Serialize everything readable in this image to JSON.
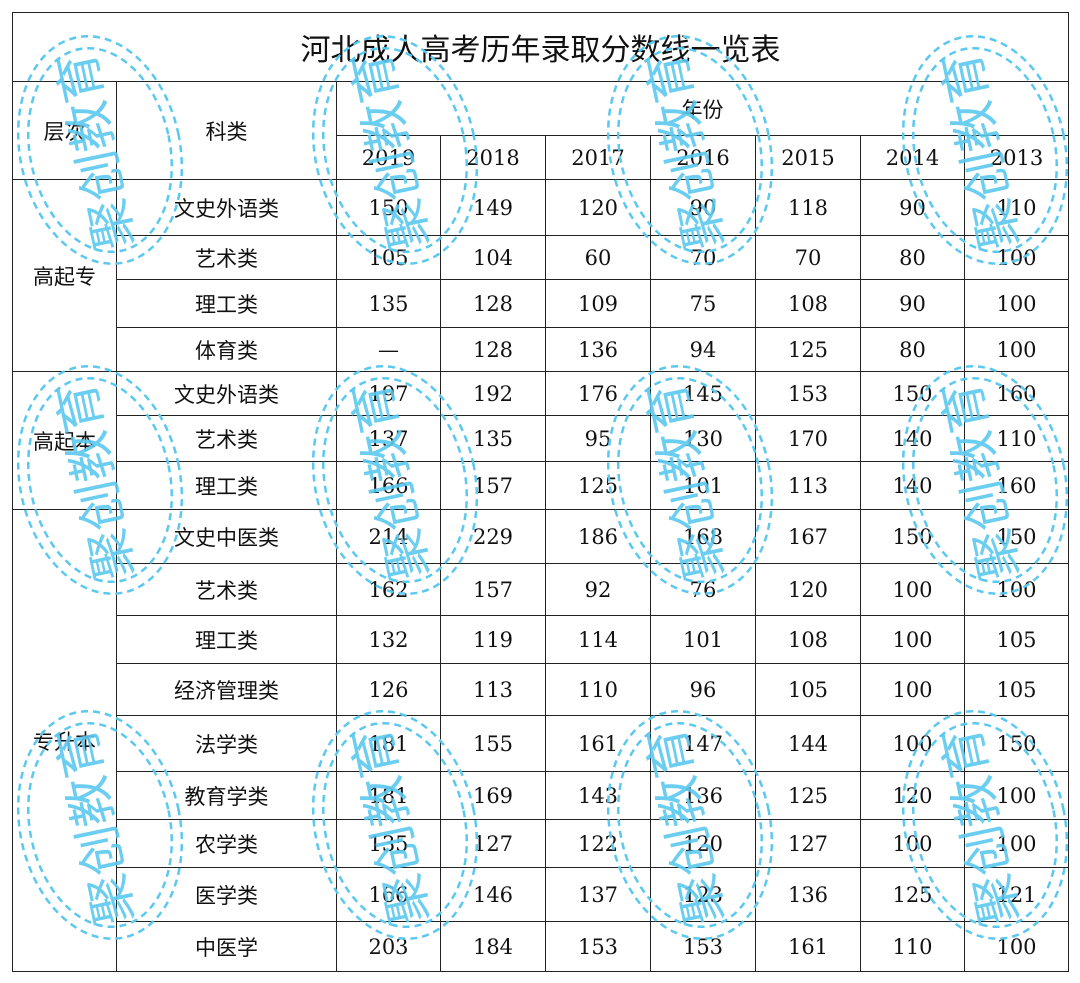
{
  "title": "河北成人高考历年录取分数线一览表",
  "headers": {
    "level": "层次",
    "category": "科类",
    "year_group": "年份",
    "years": [
      "2019",
      "2018",
      "2017",
      "2016",
      "2015",
      "2014",
      "2013"
    ]
  },
  "groups": [
    {
      "level": "高起专",
      "rows": [
        {
          "category": "文史外语类",
          "values": [
            "150",
            "149",
            "120",
            "90",
            "118",
            "90",
            "110"
          ]
        },
        {
          "category": "艺术类",
          "values": [
            "105",
            "104",
            "60",
            "70",
            "70",
            "80",
            "100"
          ]
        },
        {
          "category": "理工类",
          "values": [
            "135",
            "128",
            "109",
            "75",
            "108",
            "90",
            "100"
          ]
        },
        {
          "category": "体育类",
          "values": [
            "—",
            "128",
            "136",
            "94",
            "125",
            "80",
            "100"
          ]
        }
      ]
    },
    {
      "level": "高起本",
      "rows": [
        {
          "category": "文史外语类",
          "values": [
            "197",
            "192",
            "176",
            "145",
            "153",
            "150",
            "160"
          ]
        },
        {
          "category": "艺术类",
          "values": [
            "137",
            "135",
            "95",
            "130",
            "170",
            "140",
            "110"
          ]
        },
        {
          "category": "理工类",
          "values": [
            "166",
            "157",
            "125",
            "101",
            "113",
            "140",
            "160"
          ]
        }
      ]
    },
    {
      "level": "专升本",
      "rows": [
        {
          "category": "文史中医类",
          "values": [
            "214",
            "229",
            "186",
            "168",
            "167",
            "150",
            "150"
          ]
        },
        {
          "category": "艺术类",
          "values": [
            "162",
            "157",
            "92",
            "76",
            "120",
            "100",
            "100"
          ]
        },
        {
          "category": "理工类",
          "values": [
            "132",
            "119",
            "114",
            "101",
            "108",
            "100",
            "105"
          ]
        },
        {
          "category": "经济管理类",
          "values": [
            "126",
            "113",
            "110",
            "96",
            "105",
            "100",
            "105"
          ]
        },
        {
          "category": "法学类",
          "values": [
            "181",
            "155",
            "161",
            "147",
            "144",
            "100",
            "150"
          ]
        },
        {
          "category": "教育学类",
          "values": [
            "181",
            "169",
            "143",
            "136",
            "125",
            "120",
            "100"
          ]
        },
        {
          "category": "农学类",
          "values": [
            "135",
            "127",
            "122",
            "120",
            "127",
            "100",
            "100"
          ]
        },
        {
          "category": "医学类",
          "values": [
            "166",
            "146",
            "137",
            "123",
            "136",
            "125",
            "121"
          ]
        },
        {
          "category": "中医学",
          "values": [
            "203",
            "184",
            "153",
            "153",
            "161",
            "110",
            "100"
          ]
        }
      ]
    }
  ],
  "watermark": {
    "text": "聚创教育",
    "color": "#5bc8ef"
  }
}
